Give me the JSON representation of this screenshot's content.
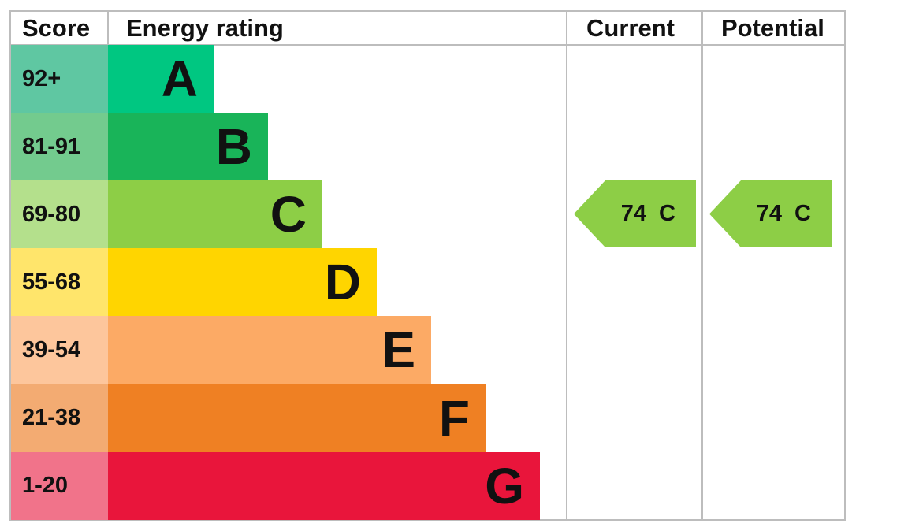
{
  "headers": {
    "score": "Score",
    "rating": "Energy rating",
    "current": "Current",
    "potential": "Potential"
  },
  "chart_data": {
    "type": "bar",
    "bands": [
      {
        "letter": "A",
        "range": "92+",
        "color": "#00c781",
        "score_color": "#5fc7a2"
      },
      {
        "letter": "B",
        "range": "81-91",
        "color": "#19b459",
        "score_color": "#73cb8e"
      },
      {
        "letter": "C",
        "range": "69-80",
        "color": "#8dce46",
        "score_color": "#b4e08c"
      },
      {
        "letter": "D",
        "range": "55-68",
        "color": "#ffd500",
        "score_color": "#ffe56b"
      },
      {
        "letter": "E",
        "range": "39-54",
        "color": "#fcaa65",
        "score_color": "#fdc69c"
      },
      {
        "letter": "F",
        "range": "21-38",
        "color": "#ef8023",
        "score_color": "#f3ab72"
      },
      {
        "letter": "G",
        "range": "1-20",
        "color": "#e9153b",
        "score_color": "#f1738a"
      }
    ],
    "current": {
      "score": 74,
      "band": "C",
      "label": "74 C",
      "color": "#8dce46"
    },
    "potential": {
      "score": 74,
      "band": "C",
      "label": "74 C",
      "color": "#8dce46"
    }
  }
}
